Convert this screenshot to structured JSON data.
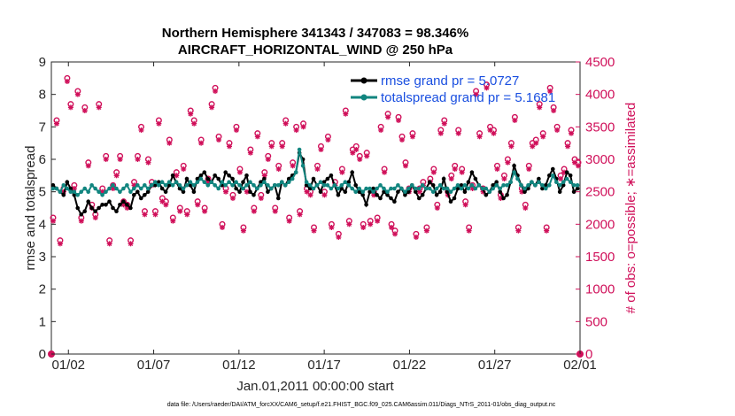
{
  "chart_data": {
    "type": "line",
    "title": "Northern Hemisphere 341343 / 347083 = 98.346%",
    "subtitle": "AIRCRAFT_HORIZONTAL_WIND @ 250 hPa",
    "xlabel": "Jan.01,2011 00:00:00 start",
    "ylabel_left": "rmse and totalspread",
    "ylabel_right": "# of obs: o=possible; ∗=assimilated",
    "footnote": "data file: /Users/raeder/DAI/ATM_forcXX/CAM6_setup/f.e21.FHIST_BGC.f09_025.CAM6assim.011/Diags_NTrS_2011-01/obs_diag_output.nc",
    "xlim": [
      0,
      31
    ],
    "ylim_left": [
      0,
      9
    ],
    "ylim_right": [
      0,
      4500
    ],
    "grid": false,
    "legend_position": "top-right",
    "x_ticks": [
      {
        "value": 1,
        "label": "01/02"
      },
      {
        "value": 6,
        "label": "01/07"
      },
      {
        "value": 11,
        "label": "01/12"
      },
      {
        "value": 16,
        "label": "01/17"
      },
      {
        "value": 21,
        "label": "01/22"
      },
      {
        "value": 26,
        "label": "01/27"
      },
      {
        "value": 31,
        "label": "02/01"
      }
    ],
    "y_ticks_left": [
      0,
      1,
      2,
      3,
      4,
      5,
      6,
      7,
      8,
      9
    ],
    "y_ticks_right": [
      0,
      500,
      1000,
      1500,
      2000,
      2500,
      3000,
      3500,
      4000,
      4500
    ],
    "colors": {
      "rmse": "#000000",
      "totalspread": "#11857f",
      "obs": "#d0105a",
      "legend_text": "#1a4fe0"
    },
    "series": [
      {
        "name": "rmse",
        "legend": "rmse grand pr = 5.0727",
        "axis": "left",
        "values": [
          5.2,
          5.1,
          5.0,
          4.9,
          5.3,
          5.1,
          4.9,
          4.5,
          4.3,
          4.4,
          4.7,
          4.5,
          4.4,
          4.5,
          4.6,
          4.6,
          4.7,
          4.5,
          4.4,
          4.6,
          4.7,
          4.6,
          4.5,
          4.9,
          5.0,
          4.8,
          4.9,
          5.0,
          5.2,
          5.2,
          5.3,
          5.1,
          5.0,
          5.2,
          5.5,
          5.3,
          5.1,
          5.0,
          5.4,
          5.2,
          5.0,
          5.4,
          5.5,
          5.6,
          5.4,
          5.3,
          5.5,
          5.4,
          5.2,
          5.6,
          5.5,
          5.4,
          5.1,
          5.0,
          5.3,
          5.5,
          5.0,
          4.9,
          5.1,
          5.3,
          5.4,
          5.0,
          5.1,
          5.2,
          4.8,
          5.3,
          5.2,
          5.4,
          5.5,
          5.6,
          6.2,
          6.0,
          5.2,
          5.1,
          5.4,
          5.2,
          5.0,
          5.3,
          5.4,
          5.5,
          5.2,
          4.9,
          5.1,
          5.0,
          5.3,
          5.6,
          5.2,
          5.0,
          4.9,
          4.6,
          5.0,
          5.1,
          4.9,
          4.8,
          5.0,
          4.9,
          4.8,
          4.7,
          5.0,
          5.1,
          4.9,
          5.0,
          5.2,
          5.0,
          4.8,
          4.9,
          5.1,
          5.3,
          5.2,
          4.9,
          5.0,
          5.4,
          5.0,
          4.7,
          4.8,
          5.1,
          5.2,
          5.0,
          5.3,
          5.6,
          5.4,
          5.2,
          5.1,
          4.9,
          5.0,
          5.2,
          5.3,
          5.0,
          4.8,
          4.9,
          5.3,
          5.8,
          5.5,
          5.2,
          5.0,
          5.1,
          5.3,
          5.2,
          5.4,
          5.1,
          5.2,
          5.5,
          5.7,
          5.4,
          5.0,
          5.2,
          5.6,
          5.5,
          5.0,
          5.1
        ]
      },
      {
        "name": "totalspread",
        "legend": "totalspread grand pr = 5.1681",
        "axis": "left",
        "values": [
          5.1,
          5.1,
          5.0,
          5.2,
          5.1,
          5.0,
          5.0,
          4.9,
          5.0,
          5.1,
          5.0,
          5.2,
          5.1,
          5.0,
          4.9,
          5.0,
          5.1,
          5.2,
          5.1,
          5.0,
          5.1,
          5.2,
          5.0,
          5.1,
          5.2,
          5.1,
          5.2,
          5.1,
          5.2,
          5.3,
          5.2,
          5.3,
          5.2,
          5.3,
          5.2,
          5.3,
          5.2,
          5.1,
          5.2,
          5.3,
          5.2,
          5.3,
          5.4,
          5.3,
          5.2,
          5.3,
          5.2,
          5.1,
          5.3,
          5.2,
          5.3,
          5.2,
          5.3,
          5.2,
          5.1,
          5.2,
          5.3,
          5.2,
          5.1,
          5.2,
          5.3,
          5.2,
          5.1,
          5.2,
          5.2,
          5.3,
          5.2,
          5.3,
          5.4,
          5.6,
          6.3,
          5.8,
          5.3,
          5.2,
          5.1,
          5.2,
          5.3,
          5.2,
          5.2,
          5.1,
          5.2,
          5.1,
          5.2,
          5.3,
          5.2,
          5.1,
          5.0,
          5.1,
          5.0,
          5.1,
          5.1,
          5.0,
          5.1,
          5.2,
          5.1,
          5.0,
          5.1,
          5.1,
          5.2,
          5.1,
          5.0,
          5.1,
          5.2,
          5.1,
          5.1,
          5.2,
          5.1,
          5.1,
          5.0,
          5.1,
          5.2,
          5.1,
          5.1,
          5.0,
          5.1,
          5.2,
          5.1,
          5.2,
          5.1,
          5.2,
          5.1,
          5.2,
          5.1,
          5.1,
          5.0,
          5.1,
          5.2,
          5.1,
          5.2,
          5.2,
          5.3,
          5.6,
          5.4,
          5.2,
          5.1,
          5.2,
          5.3,
          5.2,
          5.3,
          5.2,
          5.1,
          5.2,
          5.5,
          5.3,
          5.2,
          5.3,
          5.4,
          5.3,
          5.2,
          5.2
        ]
      },
      {
        "name": "obs_possible",
        "axis": "right",
        "marker": "o",
        "values": [
          2100,
          3600,
          1750,
          2550,
          4250,
          3850,
          2600,
          4050,
          2100,
          3800,
          2950,
          2300,
          2150,
          3850,
          2550,
          3050,
          1750,
          2600,
          2800,
          3050,
          2350,
          2300,
          1750,
          2650,
          3050,
          3500,
          2200,
          3000,
          2650,
          2200,
          3600,
          2400,
          2350,
          3300,
          2100,
          2800,
          2250,
          2900,
          2200,
          3750,
          3600,
          2350,
          3300,
          2250,
          2700,
          3850,
          4100,
          3350,
          2000,
          2550,
          3250,
          2450,
          3500,
          2850,
          1950,
          2550,
          3150,
          2250,
          3400,
          2450,
          2800,
          3050,
          3250,
          2250,
          2900,
          3250,
          3600,
          2100,
          2950,
          3500,
          2200,
          3550,
          2550,
          2500,
          1950,
          2900,
          3200,
          2500,
          3350,
          2000,
          2650,
          1850,
          2850,
          3750,
          2050,
          3150,
          3200,
          3050,
          2000,
          3100,
          2050,
          2500,
          2100,
          3500,
          2850,
          3700,
          2000,
          1900,
          3650,
          3350,
          2950,
          2550,
          3400,
          1850,
          2550,
          2650,
          1950,
          2700,
          2850,
          2300,
          3450,
          3600,
          2500,
          2750,
          2900,
          3450,
          2850,
          2350,
          1950,
          2600,
          4050,
          3400,
          2550,
          4150,
          3500,
          3450,
          2900,
          2450,
          2750,
          3000,
          3250,
          3650,
          1950,
          2550,
          2300,
          2900,
          3250,
          3300,
          3850,
          3400,
          1950,
          4100,
          3800,
          3500,
          2750,
          2850,
          3250,
          3450,
          3000,
          2950
        ]
      },
      {
        "name": "obs_assimilated",
        "axis": "right",
        "marker": "*",
        "values": [
          2050,
          3550,
          1700,
          2500,
          4200,
          3800,
          2550,
          4000,
          2050,
          3750,
          2900,
          2250,
          2100,
          3800,
          2500,
          3000,
          1700,
          2550,
          2750,
          3000,
          2300,
          2250,
          1700,
          2600,
          3000,
          3450,
          2150,
          2950,
          2600,
          2150,
          3550,
          2350,
          2300,
          3250,
          2050,
          2750,
          2200,
          2850,
          2150,
          3700,
          3550,
          2300,
          3250,
          2200,
          2650,
          3800,
          4050,
          3300,
          1950,
          2500,
          3200,
          2400,
          3450,
          2800,
          1900,
          2500,
          3100,
          2200,
          3350,
          2400,
          2750,
          3000,
          3200,
          2200,
          2850,
          3200,
          3550,
          2050,
          2900,
          3450,
          2150,
          3500,
          2500,
          2450,
          1900,
          2850,
          3150,
          2450,
          3300,
          1950,
          2600,
          1800,
          2800,
          3700,
          2000,
          3100,
          3150,
          3000,
          1950,
          3050,
          2000,
          2450,
          2050,
          3450,
          2800,
          3650,
          1950,
          1850,
          3600,
          3300,
          2900,
          2500,
          3350,
          1800,
          2500,
          2600,
          1900,
          2650,
          2800,
          2250,
          3400,
          3550,
          2450,
          2700,
          2850,
          3400,
          2800,
          2300,
          1900,
          2550,
          4000,
          3350,
          2500,
          4100,
          3450,
          3400,
          2850,
          2400,
          2700,
          2950,
          3200,
          3600,
          1900,
          2500,
          2250,
          2850,
          3200,
          3250,
          3800,
          3350,
          1900,
          4050,
          3750,
          3450,
          2700,
          2800,
          3200,
          3400,
          2950,
          2900
        ]
      }
    ]
  }
}
